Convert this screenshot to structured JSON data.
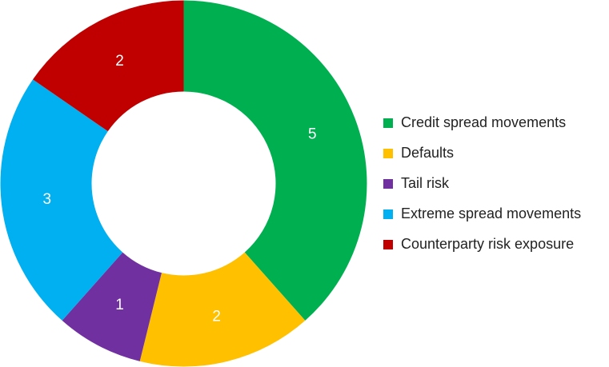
{
  "chart_data": {
    "type": "donut",
    "categories": [
      "Credit spread movements",
      "Defaults",
      "Tail risk",
      "Extreme spread movements",
      "Counterparty risk exposure"
    ],
    "values": [
      5,
      2,
      1,
      3,
      2
    ],
    "colors": [
      "#00b050",
      "#ffc000",
      "#7030a0",
      "#00b0f0",
      "#c00000"
    ],
    "legend": "right"
  }
}
